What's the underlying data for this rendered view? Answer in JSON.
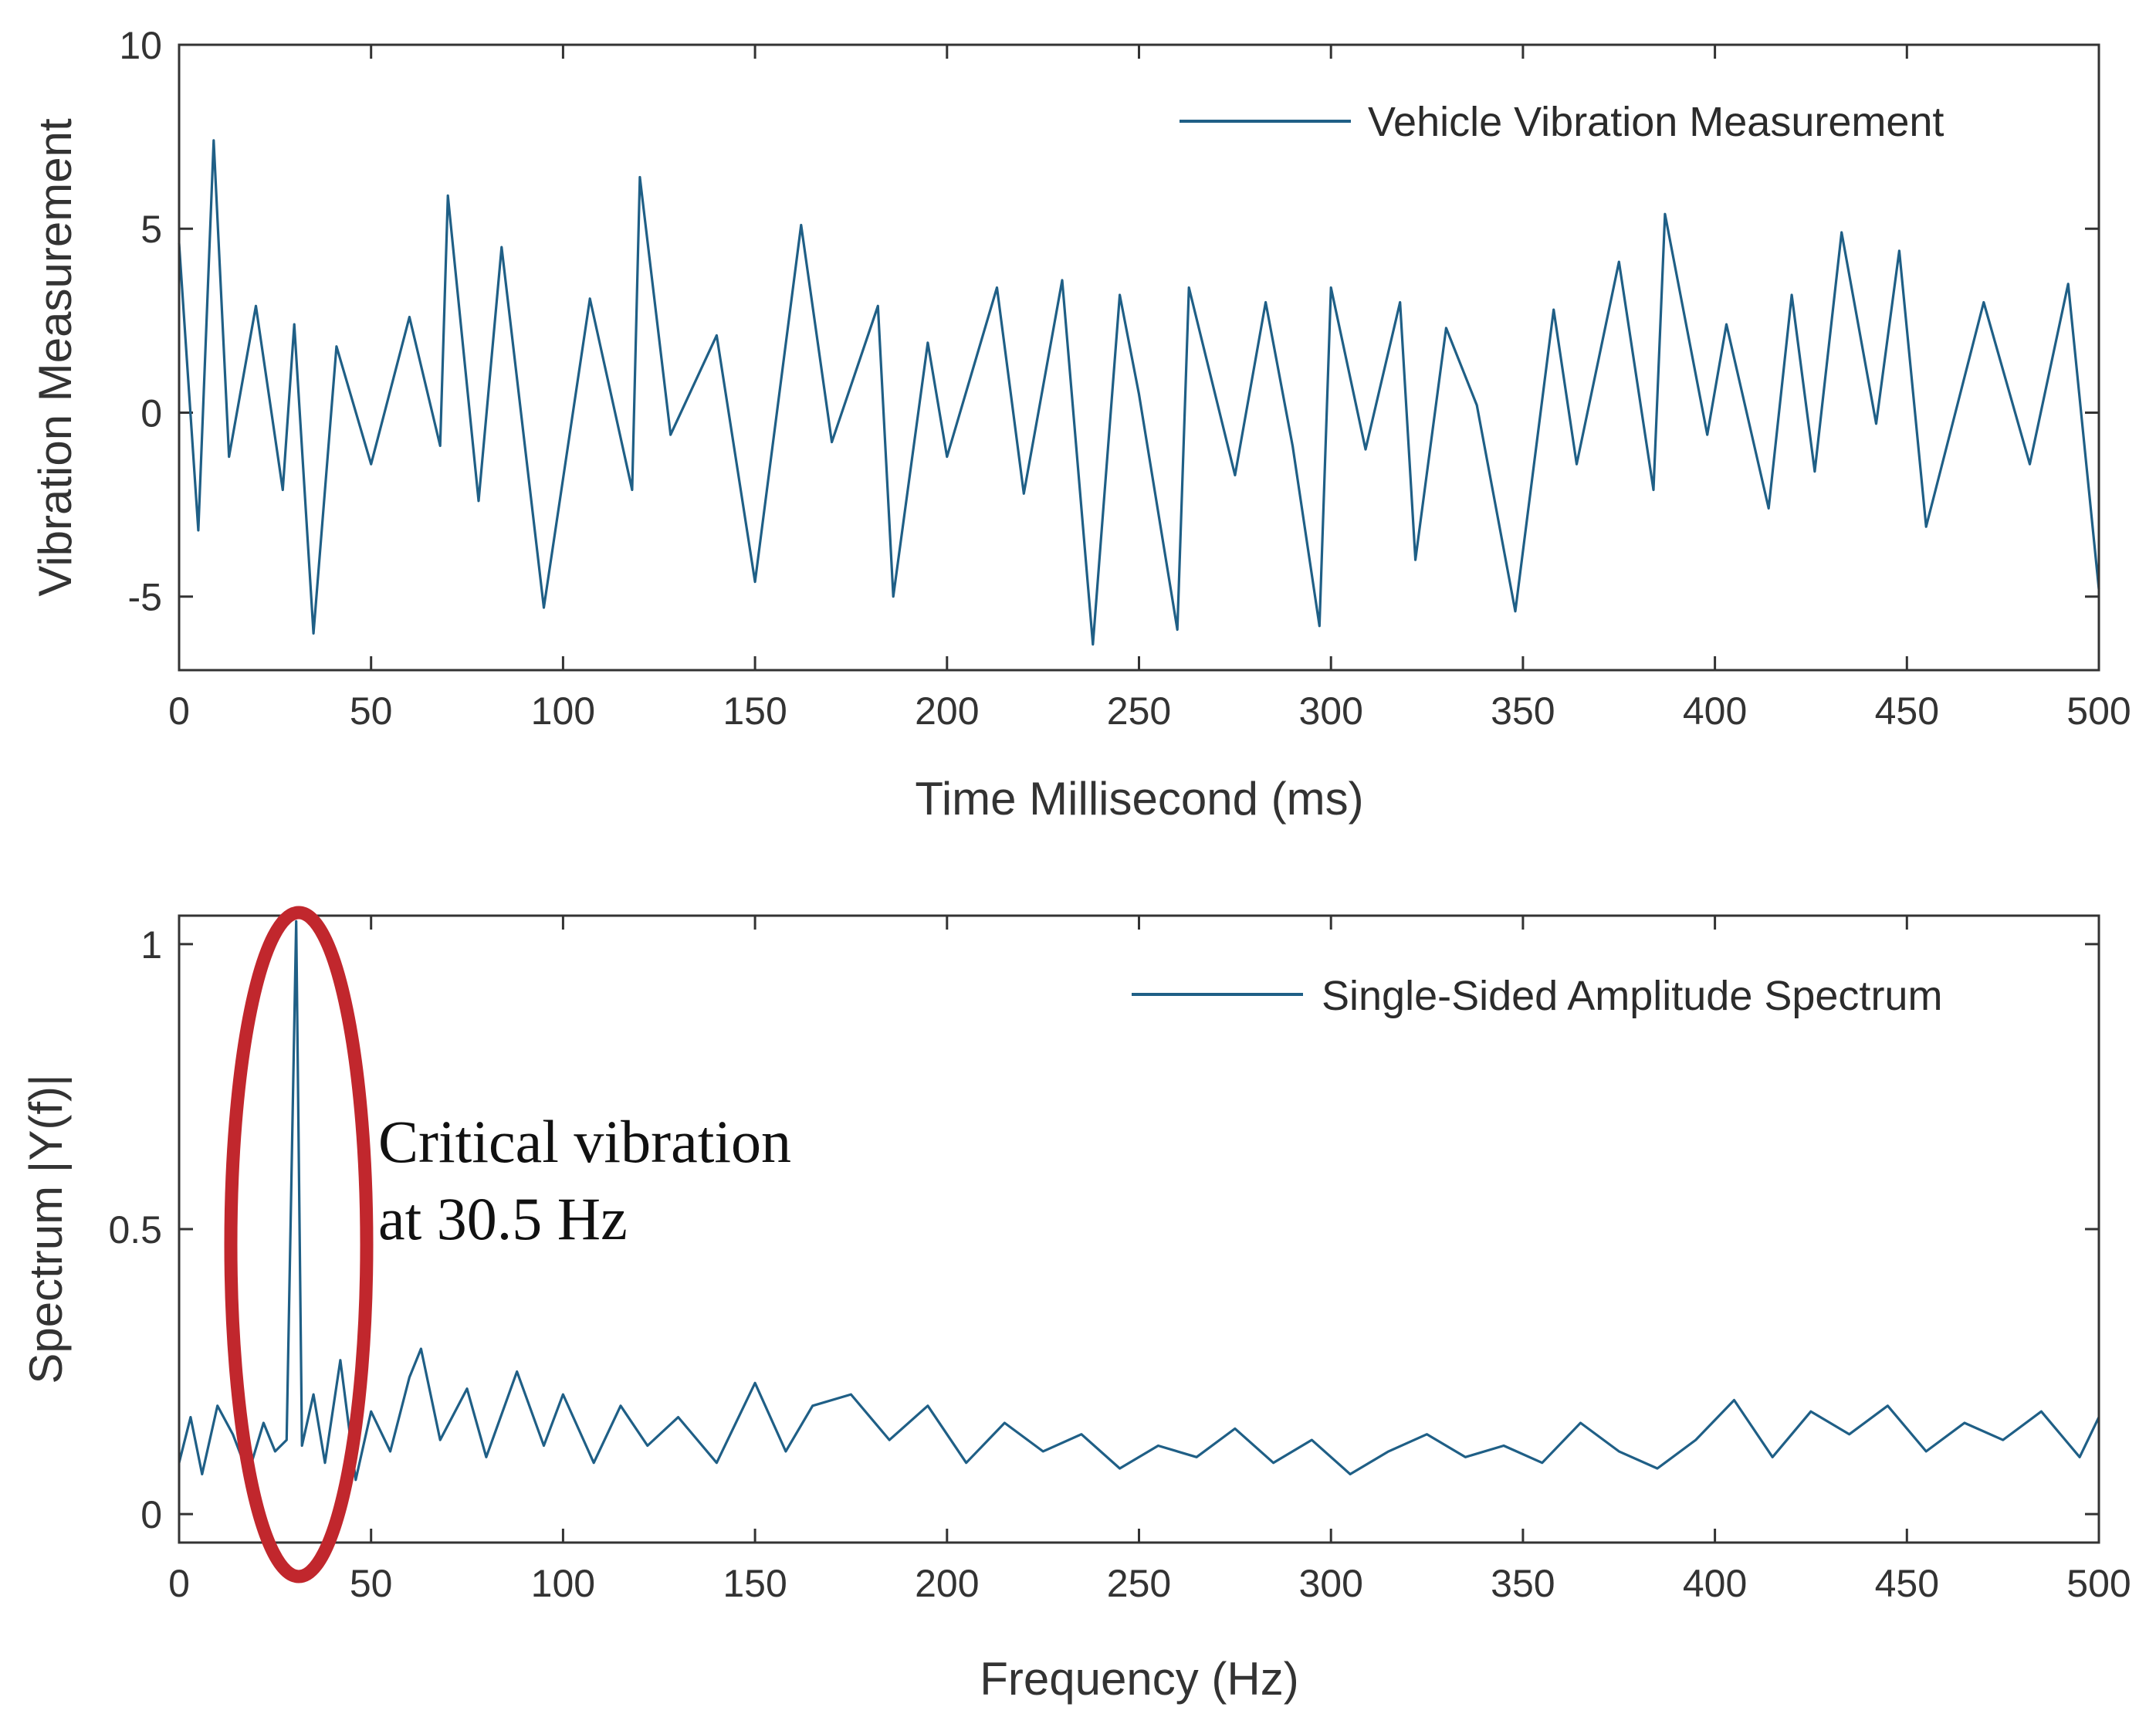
{
  "chart_data": [
    {
      "type": "line",
      "xlabel": "Time Millisecond (ms)",
      "ylabel": "Vibration Measurement",
      "xlim": [
        0,
        500
      ],
      "ylim": [
        -7,
        10
      ],
      "xticks": [
        0,
        50,
        100,
        150,
        200,
        250,
        300,
        350,
        400,
        450,
        500
      ],
      "xtick_labels": [
        "0",
        "50",
        "100",
        "150",
        "200",
        "250",
        "300",
        "350",
        "400",
        "450",
        "500"
      ],
      "yticks": [
        -5,
        0,
        5,
        10
      ],
      "ytick_labels": [
        "-5",
        "0",
        "5",
        "10"
      ],
      "grid": false,
      "legend_position": "top-right",
      "series": [
        {
          "name": "Vehicle Vibration Measurement",
          "color": "#1f5f86",
          "x": [
            0,
            5,
            9,
            13,
            20,
            27,
            30,
            35,
            41,
            50,
            60,
            68,
            70,
            78,
            84,
            95,
            100,
            107,
            118,
            120,
            128,
            140,
            150,
            162,
            170,
            182,
            186,
            195,
            200,
            213,
            220,
            230,
            238,
            245,
            250,
            260,
            263,
            275,
            283,
            290,
            297,
            300,
            309,
            318,
            322,
            330,
            338,
            348,
            358,
            364,
            375,
            384,
            387,
            398,
            403,
            414,
            420,
            426,
            433,
            442,
            448,
            455,
            470,
            482,
            492,
            500
          ],
          "y": [
            4.6,
            -3.2,
            7.4,
            -1.2,
            2.9,
            -2.1,
            2.4,
            -6.0,
            1.8,
            -1.4,
            2.6,
            -0.9,
            5.9,
            -2.4,
            4.5,
            -5.3,
            -1.8,
            3.1,
            -2.1,
            6.4,
            -0.6,
            2.1,
            -4.6,
            5.1,
            -0.8,
            2.9,
            -5.0,
            1.9,
            -1.2,
            3.4,
            -2.2,
            3.6,
            -6.3,
            3.2,
            0.5,
            -5.9,
            3.4,
            -1.7,
            3.0,
            -0.9,
            -5.8,
            3.4,
            -1.0,
            3.0,
            -4.0,
            2.3,
            0.2,
            -5.4,
            2.8,
            -1.4,
            4.1,
            -2.1,
            5.4,
            -0.6,
            2.4,
            -2.6,
            3.2,
            -1.6,
            4.9,
            -0.3,
            4.4,
            -3.1,
            3.0,
            -1.4,
            3.5,
            -4.8
          ]
        }
      ]
    },
    {
      "type": "line",
      "xlabel": "Frequency (Hz)",
      "ylabel": "Spectrum |Y(f)|",
      "xlim": [
        0,
        500
      ],
      "ylim": [
        -0.05,
        1.05
      ],
      "xticks": [
        0,
        50,
        100,
        150,
        200,
        250,
        300,
        350,
        400,
        450,
        500
      ],
      "xtick_labels": [
        "0",
        "50",
        "100",
        "150",
        "200",
        "250",
        "300",
        "350",
        "400",
        "450",
        "500"
      ],
      "yticks": [
        0,
        0.5,
        1
      ],
      "ytick_labels": [
        "0",
        "0.5",
        "1"
      ],
      "grid": false,
      "legend_position": "top-right",
      "series": [
        {
          "name": "Single-Sided Amplitude Spectrum",
          "color": "#1f5f86",
          "x": [
            0,
            3,
            6,
            10,
            14,
            18,
            22,
            25,
            28,
            30.5,
            32,
            35,
            38,
            42,
            46,
            50,
            55,
            60,
            63,
            68,
            75,
            80,
            88,
            95,
            100,
            108,
            115,
            122,
            130,
            140,
            150,
            158,
            165,
            175,
            185,
            195,
            205,
            215,
            225,
            235,
            245,
            255,
            265,
            275,
            285,
            295,
            305,
            315,
            325,
            335,
            345,
            355,
            365,
            375,
            385,
            395,
            405,
            415,
            425,
            435,
            445,
            455,
            465,
            475,
            485,
            495,
            500
          ],
          "y": [
            0.09,
            0.17,
            0.07,
            0.19,
            0.14,
            0.07,
            0.16,
            0.11,
            0.13,
            1.04,
            0.12,
            0.21,
            0.09,
            0.27,
            0.06,
            0.18,
            0.11,
            0.24,
            0.29,
            0.13,
            0.22,
            0.1,
            0.25,
            0.12,
            0.21,
            0.09,
            0.19,
            0.12,
            0.17,
            0.09,
            0.23,
            0.11,
            0.19,
            0.21,
            0.13,
            0.19,
            0.09,
            0.16,
            0.11,
            0.14,
            0.08,
            0.12,
            0.1,
            0.15,
            0.09,
            0.13,
            0.07,
            0.11,
            0.14,
            0.1,
            0.12,
            0.09,
            0.16,
            0.11,
            0.08,
            0.13,
            0.2,
            0.1,
            0.18,
            0.14,
            0.19,
            0.11,
            0.16,
            0.13,
            0.18,
            0.1,
            0.17
          ]
        }
      ],
      "annotations": [
        {
          "text_line1": "Critical vibration",
          "text_line2": "at 30.5 Hz",
          "at_x": 30.5,
          "highlight": "ellipse",
          "color": "#c1272d"
        }
      ]
    }
  ]
}
